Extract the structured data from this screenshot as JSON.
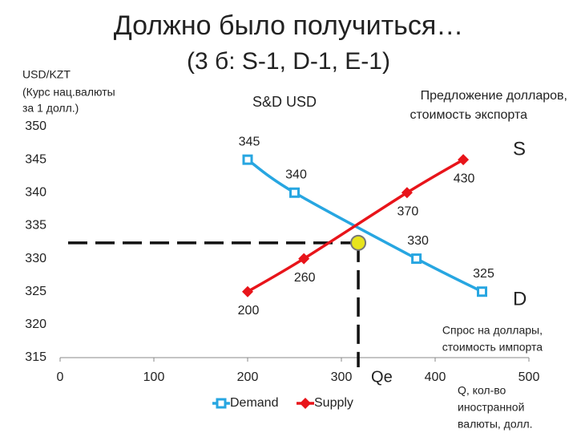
{
  "chart_data": {
    "type": "line",
    "title": "Должно было получиться…",
    "subtitle": "(3 б: S-1, D-1, E-1)",
    "chart_title": "S&D USD",
    "y_axis_label": [
      "USD/KZT",
      "(Курс нац.валюты",
      "за 1 долл.)"
    ],
    "x_axis_label": [
      "Q, кол-во",
      "иностранной",
      "валюты, долл."
    ],
    "supply_note": [
      "Предложение долларов,",
      "стоимость экспорта"
    ],
    "demand_note": [
      "Спрос на доллары,",
      "стоимость импорта"
    ],
    "supply_letter": "S",
    "demand_letter": "D",
    "xlim": [
      0,
      500
    ],
    "xticks": [
      0,
      100,
      200,
      300,
      400,
      500
    ],
    "ylim": [
      315,
      350
    ],
    "yticks": [
      315,
      320,
      325,
      330,
      335,
      340,
      345,
      350
    ],
    "series": [
      {
        "name": "Demand",
        "color": "#27a6e1",
        "x": [
          200,
          250,
          380,
          450
        ],
        "values": [
          345,
          340,
          330,
          325
        ]
      },
      {
        "name": "Supply",
        "color": "#e8141a",
        "x": [
          200,
          260,
          370,
          430
        ],
        "values": [
          325,
          330,
          340,
          345
        ]
      }
    ],
    "equilibrium": {
      "x": 318,
      "y": 332.4,
      "label": "Qe",
      "color": "#e8e41c"
    }
  }
}
